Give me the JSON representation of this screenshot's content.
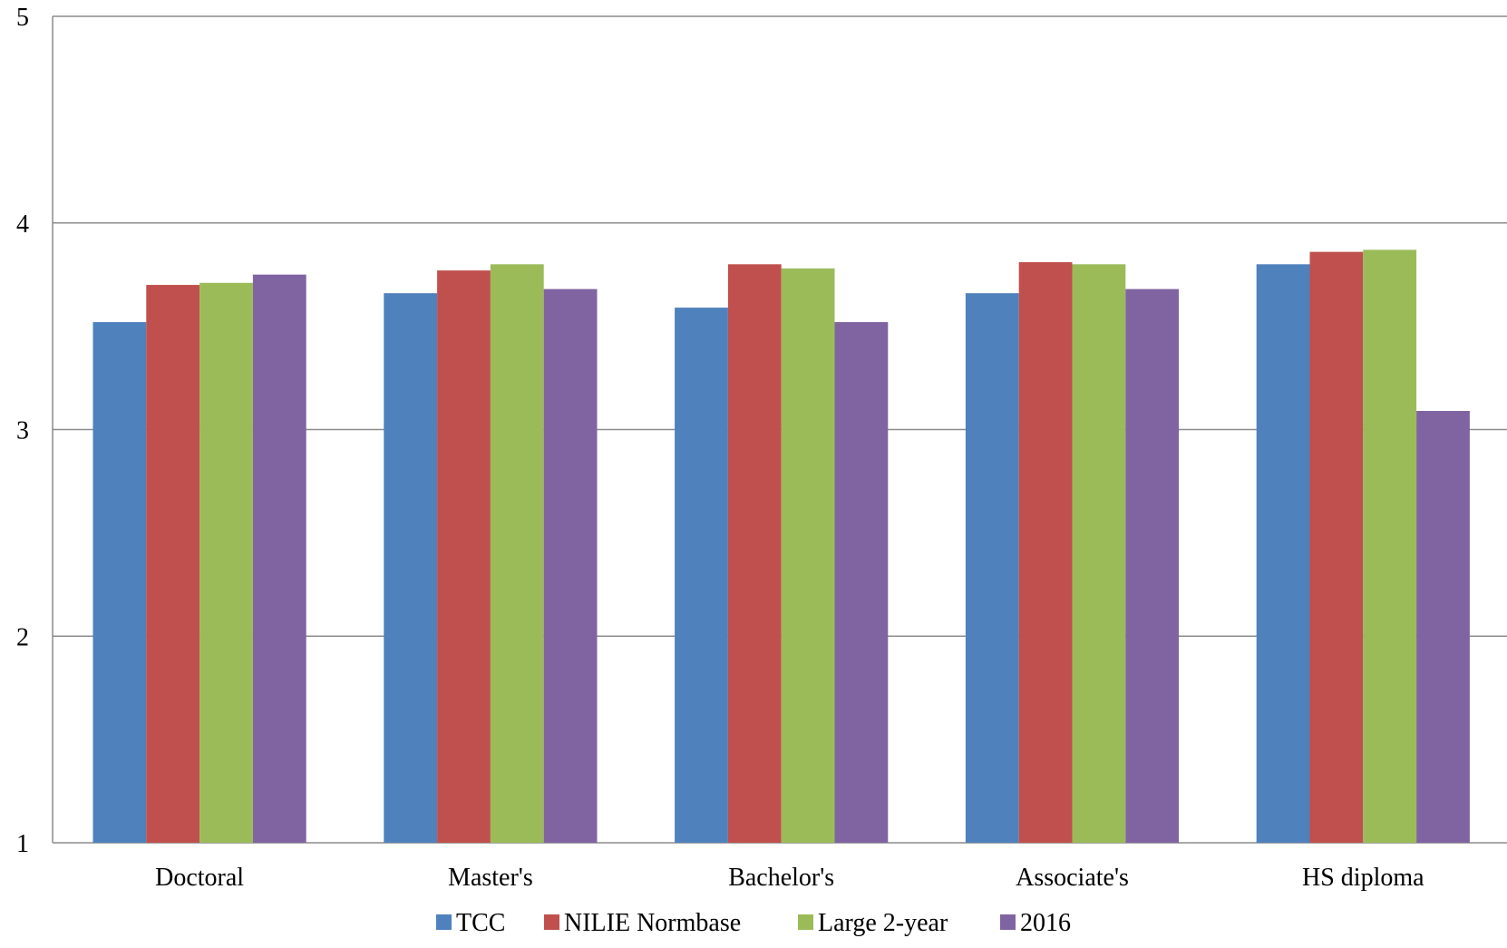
{
  "chart_data": {
    "type": "bar",
    "categories": [
      "Doctoral",
      "Master's",
      "Bachelor's",
      "Associate's",
      "HS diploma"
    ],
    "series": [
      {
        "name": "TCC",
        "color": "#4F81BD",
        "values": [
          3.52,
          3.66,
          3.59,
          3.66,
          3.8
        ]
      },
      {
        "name": "NILIE Normbase",
        "color": "#C0504D",
        "values": [
          3.7,
          3.77,
          3.8,
          3.81,
          3.86
        ]
      },
      {
        "name": "Large 2-year",
        "color": "#9BBB59",
        "values": [
          3.71,
          3.8,
          3.78,
          3.8,
          3.87
        ]
      },
      {
        "name": "2016",
        "color": "#8064A2",
        "values": [
          3.75,
          3.68,
          3.52,
          3.68,
          3.09
        ]
      }
    ],
    "yticks": [
      "1",
      "2",
      "3",
      "4",
      "5"
    ],
    "ylim": [
      1,
      5
    ],
    "title": "",
    "xlabel": "",
    "ylabel": "",
    "grid": true,
    "legend_position": "bottom"
  }
}
